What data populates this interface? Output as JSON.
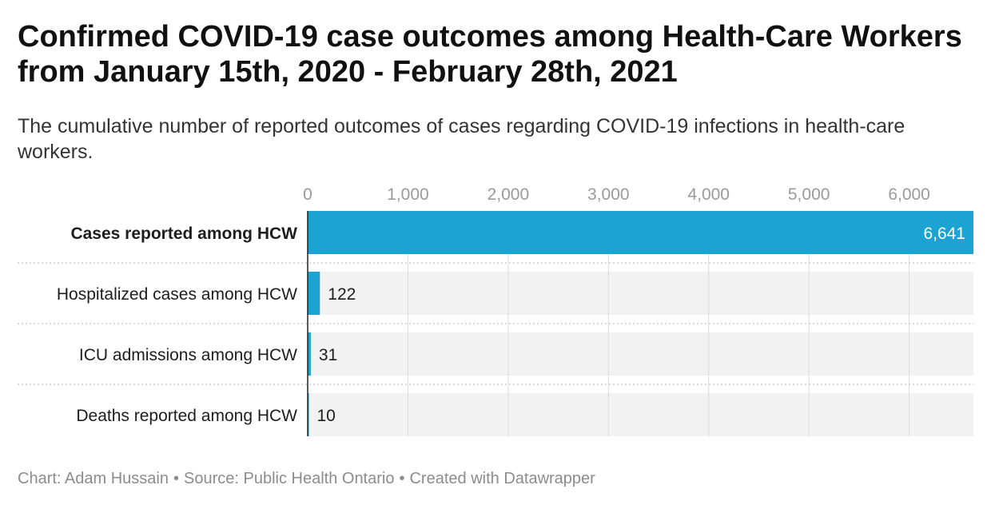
{
  "title": "Confirmed COVID-19 case outcomes among Health-Care Workers from January 15th, 2020 - February 28th, 2021",
  "subtitle": "The cumulative number of reported outcomes of cases regarding COVID-19 infections in health-care workers.",
  "footer": {
    "credit": "Chart: Adam Hussain",
    "source": "Source: Public Health Ontario",
    "tool": "Created with Datawrapper",
    "separator": "•"
  },
  "colors": {
    "bar": "#1ba3d1",
    "track": "#f2f2f2",
    "grid": "#d9d9d9",
    "tick_label": "#9a9a9a",
    "row_separator": "#cccccc",
    "axis_line": "#222222"
  },
  "chart_data": {
    "type": "bar",
    "orientation": "horizontal",
    "categories": [
      "Cases reported among HCW",
      "Hospitalized cases among HCW",
      "ICU admissions among HCW",
      "Deaths reported among HCW"
    ],
    "values": [
      6641,
      122,
      31,
      10
    ],
    "value_labels": [
      "6,641",
      "122",
      "31",
      "10"
    ],
    "highlighted_category": "Cases reported among HCW",
    "xlim": [
      0,
      6641
    ],
    "x_ticks": [
      0,
      1000,
      2000,
      3000,
      4000,
      5000,
      6000
    ],
    "x_tick_labels": [
      "0",
      "1,000",
      "2,000",
      "3,000",
      "4,000",
      "5,000",
      "6,000"
    ],
    "x_axis_position": "top",
    "grid": true
  }
}
